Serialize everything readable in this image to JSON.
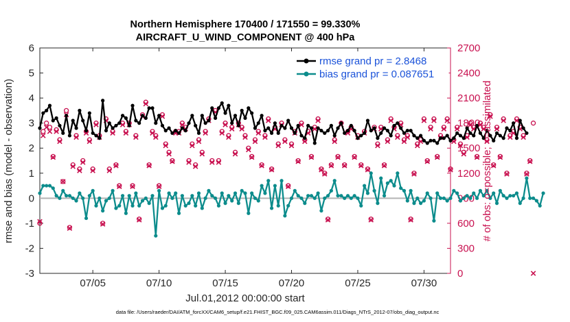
{
  "chart_data": {
    "type": "line",
    "title": "Northern Hemisphere 170400 / 171550 = 99.330%",
    "subtitle": "AIRCRAFT_U_WIND_COMPONENT @ 400 hPa",
    "xlabel": "Jul.01,2012 00:00:00 start",
    "ylabel": "rmse and bias (model - observation)",
    "ylabel_right": "# of obs: o=possible; ×=assimilated",
    "footer": "data file: /Users/raeder/DAI/ATM_forcXX/CAM6_setup/f.e21.FHIST_BGC.f09_025.CAM6assim.011/Diags_NTrS_2012-07/obs_diag_output.nc",
    "xlim": [
      1,
      32
    ],
    "ylim": [
      -3,
      6
    ],
    "ylim_right": [
      0,
      2700
    ],
    "x_ticks": [
      5,
      10,
      15,
      20,
      25,
      30
    ],
    "x_tick_labels": [
      "07/05",
      "07/10",
      "07/15",
      "07/20",
      "07/25",
      "07/30"
    ],
    "y_ticks": [
      -3,
      -2,
      -1,
      0,
      1,
      2,
      3,
      4,
      5,
      6
    ],
    "y_ticks_right": [
      0,
      300,
      600,
      900,
      1200,
      1500,
      1800,
      2100,
      2400,
      2700
    ],
    "legend": [
      {
        "label": "rmse grand pr = 2.8468",
        "color": "#000000"
      },
      {
        "label": "bias grand pr = 0.087651",
        "color": "#0c8c8c"
      }
    ],
    "colors": {
      "rmse": "#000000",
      "bias": "#0c8c8c",
      "obs": "#c8104f",
      "zero_line": "#b3b3b3"
    },
    "x_start": 1.0,
    "x_step": 0.25,
    "series": [
      {
        "name": "rmse",
        "values": [
          2.8,
          3.4,
          3.5,
          3.7,
          3.1,
          3.2,
          2.9,
          2.6,
          3.3,
          2.5,
          3.1,
          2.8,
          3.5,
          3.1,
          2.7,
          3.4,
          2.6,
          2.5,
          2.4,
          3.9,
          2.7,
          3.0,
          2.8,
          2.9,
          3.0,
          3.3,
          3.2,
          2.9,
          3.7,
          3.1,
          3.0,
          3.3,
          3.2,
          3.6,
          3.6,
          3.0,
          3.3,
          2.9,
          2.7,
          2.8,
          2.6,
          2.7,
          2.6,
          2.8,
          2.7,
          3.0,
          3.3,
          2.9,
          2.6,
          3.3,
          3.0,
          3.1,
          3.6,
          3.2,
          3.6,
          3.8,
          3.4,
          3.7,
          3.0,
          3.3,
          2.9,
          3.5,
          3.2,
          3.6,
          3.4,
          2.8,
          3.0,
          3.3,
          2.7,
          2.8,
          2.6,
          3.0,
          2.6,
          2.9,
          2.8,
          3.1,
          2.8,
          2.6,
          2.9,
          2.5,
          2.4,
          2.9,
          2.8,
          2.2,
          2.8,
          2.7,
          2.6,
          2.7,
          2.9,
          2.5,
          2.8,
          3.0,
          2.6,
          2.7,
          2.9,
          2.7,
          2.4,
          2.5,
          2.6,
          3.1,
          2.7,
          2.8,
          2.4,
          2.6,
          2.8,
          2.7,
          2.5,
          2.9,
          3.0,
          2.8,
          2.6,
          2.7,
          2.7,
          2.5,
          2.4,
          2.5,
          2.3,
          2.2,
          2.3,
          2.3,
          2.2,
          2.4,
          2.4,
          2.5,
          2.3,
          2.4,
          2.6,
          2.5,
          2.4,
          2.8,
          2.6,
          2.5,
          2.9,
          2.6,
          2.4,
          2.7,
          2.5,
          2.3,
          2.6,
          2.5,
          2.4,
          2.8,
          2.7,
          3.0,
          2.4,
          3.1,
          2.8,
          2.6
        ]
      },
      {
        "name": "bias",
        "values": [
          0.2,
          0.5,
          0.5,
          0.5,
          0.4,
          0.1,
          0.0,
          0.3,
          0.1,
          0.1,
          0.0,
          -0.1,
          0.2,
          0.0,
          -0.8,
          0.1,
          0.3,
          -0.3,
          0.0,
          -0.5,
          -0.1,
          0.0,
          0.3,
          -0.4,
          -0.3,
          0.1,
          -0.6,
          0.1,
          -0.3,
          0.2,
          -0.3,
          -0.1,
          0.0,
          -0.2,
          0.1,
          -1.5,
          0.3,
          -0.4,
          -0.3,
          0.2,
          0.0,
          0.2,
          -0.6,
          0.1,
          -0.3,
          -0.2,
          0.1,
          -0.3,
          0.2,
          -0.4,
          0.0,
          0.3,
          0.1,
          0.0,
          -0.3,
          0.2,
          -0.2,
          0.1,
          -0.1,
          0.2,
          -0.2,
          0.3,
          0.2,
          -0.6,
          0.2,
          0.0,
          -0.1,
          0.5,
          0.2,
          0.7,
          -0.4,
          0.5,
          -0.3,
          0.7,
          -0.7,
          -0.3,
          0.0,
          0.3,
          0.1,
          0.0,
          -0.2,
          0.1,
          0.1,
          0.0,
          0.2,
          -0.5,
          0.0,
          0.1,
          0.3,
          0.7,
          0.1,
          0.1,
          0.0,
          0.1,
          0.0,
          0.1,
          0.0,
          -0.3,
          0.5,
          0.2,
          1.0,
          0.3,
          -0.2,
          0.8,
          0.1,
          0.6,
          0.7,
          0.5,
          1.0,
          0.4,
          0.3,
          -0.1,
          0.3,
          -0.2,
          0.0,
          -0.2,
          -0.1,
          0.2,
          0.0,
          -0.9,
          0.2,
          0.0,
          0.0,
          -0.1,
          0.0,
          0.3,
          0.2,
          -0.1,
          0.0,
          0.1,
          0.0,
          0.2,
          0.0,
          0.3,
          0.1,
          0.3,
          0.0,
          0.2,
          -0.2,
          0.3,
          0.1,
          0.0,
          0.1,
          0.1,
          0.2,
          -0.2,
          0.0,
          0.8,
          0.0,
          0.0,
          -0.1,
          -0.3,
          0.2
        ]
      },
      {
        "name": "obs_possible",
        "values": [
          600,
          1700,
          1800,
          1750,
          1400,
          1720,
          1600,
          1100,
          1950,
          550,
          1300,
          1650,
          1250,
          1350,
          1700,
          1600,
          1250,
          1800,
          1650,
          600,
          1850,
          1250,
          1700,
          1300,
          1050,
          1800,
          1700,
          1800,
          1050,
          1650,
          650,
          1900,
          2050,
          1300,
          1700,
          1650,
          1050,
          1900,
          1550,
          1450,
          1350,
          1700,
          1700,
          1800,
          1750,
          1350,
          1550,
          1300,
          1600,
          1450,
          1700,
          1850,
          1350,
          1950,
          1350,
          1700,
          1800,
          1650,
          1750,
          1450,
          1800,
          1750,
          1650,
          1500,
          1400,
          1600,
          1700,
          1300,
          1650,
          1850,
          1250,
          1750,
          1550,
          1800,
          1600,
          1050,
          1550,
          1700,
          1350,
          1800,
          1600,
          1700,
          1400,
          1750,
          1850,
          1250,
          1200,
          650,
          1300,
          1600,
          1400,
          1800,
          1300,
          1700,
          1750,
          1400,
          1650,
          1300,
          1700,
          1250,
          650,
          1750,
          1550,
          1750,
          1300,
          1600,
          1850,
          1750,
          1650,
          1800,
          1600,
          1650,
          650,
          1200,
          1550,
          1600,
          1850,
          1350,
          1750,
          1850,
          1400,
          1650,
          1750,
          1850,
          1250,
          1600,
          1750,
          1550,
          1450,
          1650,
          1800,
          1750,
          1400,
          1800,
          1750,
          1600,
          1900,
          1300,
          1750,
          1400,
          1850,
          1200,
          1650,
          1700,
          1850,
          1750,
          1650,
          1200,
          1350,
          1800
        ]
      },
      {
        "name": "obs_assimilated",
        "values": [
          620,
          1650,
          1750,
          1700,
          1390,
          1700,
          1580,
          1100,
          1900,
          540,
          1280,
          1630,
          1230,
          1330,
          1680,
          1580,
          1230,
          1780,
          1630,
          590,
          1830,
          1230,
          1680,
          1290,
          1040,
          1780,
          1680,
          1780,
          1040,
          1630,
          640,
          1880,
          2030,
          1290,
          1680,
          1630,
          1040,
          1880,
          1530,
          1430,
          1340,
          1680,
          1680,
          1780,
          1730,
          1330,
          1530,
          1280,
          1580,
          1430,
          1680,
          1830,
          1330,
          1930,
          1330,
          1680,
          1780,
          1630,
          1730,
          1430,
          1780,
          1730,
          1630,
          1480,
          1390,
          1580,
          1680,
          1290,
          1630,
          1830,
          1240,
          1730,
          1530,
          1780,
          1580,
          1040,
          1530,
          1680,
          1340,
          1780,
          1580,
          1680,
          1390,
          1730,
          1830,
          1240,
          1190,
          640,
          1290,
          1580,
          1390,
          1780,
          1290,
          1680,
          1730,
          1390,
          1630,
          1290,
          1680,
          1240,
          640,
          1730,
          1530,
          1730,
          1290,
          1580,
          1830,
          1730,
          1630,
          1780,
          1580,
          1630,
          640,
          1190,
          1530,
          1580,
          1830,
          1340,
          1730,
          1830,
          1390,
          1630,
          1730,
          1830,
          1240,
          1580,
          1730,
          1530,
          1430,
          1630,
          1780,
          1730,
          1390,
          1780,
          1730,
          1580,
          1880,
          1290,
          1730,
          1390,
          1830,
          1190,
          1630,
          1680,
          1830,
          1730,
          1630,
          1190,
          1340,
          0
        ]
      }
    ]
  }
}
